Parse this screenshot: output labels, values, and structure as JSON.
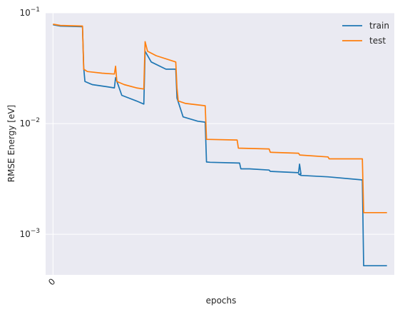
{
  "chart_data": {
    "type": "line",
    "title": "",
    "xlabel": "epochs",
    "ylabel": "RMSE Energy [eV]",
    "yscale": "log",
    "ylim": [
      0.00043,
      0.1
    ],
    "xlim": [
      -3,
      139
    ],
    "grid": true,
    "legend_position": "top-right",
    "x_ticks": [
      {
        "value": 0,
        "label": "0",
        "rotation": 45
      }
    ],
    "y_ticks": [
      {
        "value": 0.001,
        "base": "10",
        "exp": "−3"
      },
      {
        "value": 0.01,
        "base": "10",
        "exp": "−2"
      },
      {
        "value": 0.1,
        "base": "10",
        "exp": "−1"
      }
    ],
    "series": [
      {
        "name": "train",
        "color": "#1f77b4",
        "x": [
          0,
          3,
          12,
          12.5,
          13,
          16,
          22,
          25,
          25.5,
          28,
          34,
          37,
          37.5,
          40,
          46,
          50,
          50.5,
          53,
          59,
          62,
          62.5,
          64,
          76,
          76.5,
          80,
          88,
          88.5,
          100,
          100.4,
          101,
          100,
          100.5,
          101,
          112,
          126,
          126.5,
          136
        ],
        "y": [
          0.078,
          0.076,
          0.075,
          0.032,
          0.024,
          0.0225,
          0.0215,
          0.021,
          0.026,
          0.018,
          0.016,
          0.015,
          0.045,
          0.036,
          0.031,
          0.031,
          0.017,
          0.0115,
          0.0105,
          0.0103,
          0.0045,
          0.00447,
          0.0044,
          0.0039,
          0.0039,
          0.0038,
          0.0037,
          0.0036,
          0.0043,
          0.0035,
          0.0035,
          0.00345,
          0.0034,
          0.0033,
          0.0031,
          0.00052,
          0.00052
        ]
      },
      {
        "name": "test",
        "color": "#ff7f0e",
        "x": [
          0,
          3,
          12,
          12.5,
          14,
          20,
          25,
          25.5,
          26,
          29,
          34,
          37,
          37.5,
          38.5,
          42,
          50,
          50.5,
          51,
          54,
          62,
          62.5,
          75,
          75.5,
          88,
          88.5,
          100,
          100.5,
          112,
          112.5,
          126,
          126.5,
          136
        ],
        "y": [
          0.079,
          0.077,
          0.076,
          0.031,
          0.0295,
          0.0285,
          0.028,
          0.033,
          0.024,
          0.0225,
          0.021,
          0.0205,
          0.055,
          0.045,
          0.041,
          0.036,
          0.021,
          0.016,
          0.0152,
          0.0145,
          0.0072,
          0.0071,
          0.006,
          0.0059,
          0.0055,
          0.0054,
          0.0052,
          0.005,
          0.0048,
          0.0048,
          0.00157,
          0.00157
        ]
      }
    ]
  }
}
